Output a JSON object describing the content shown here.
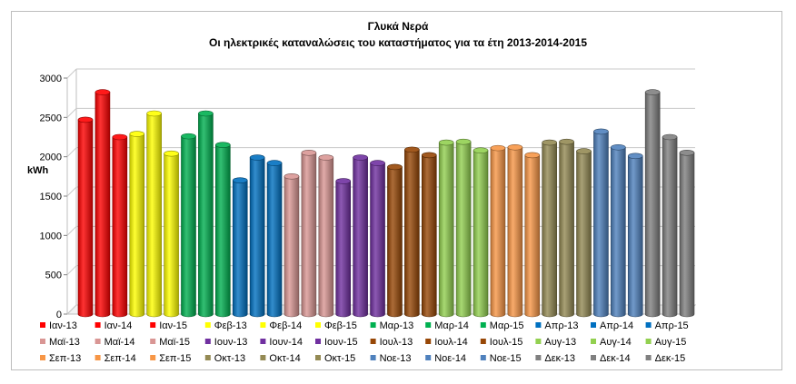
{
  "chart_data": {
    "type": "bar",
    "title": "Γλυκά Νερά",
    "subtitle": "Οι ηλεκτρικές καταναλώσεις του καταστήματος για τα έτη 2013-2014-2015",
    "ylabel": "kWh",
    "xlabel": "",
    "ylim": [
      0,
      3000
    ],
    "yticks": [
      0,
      500,
      1000,
      1500,
      2000,
      2500,
      3000
    ],
    "grid": true,
    "legend": "bottom",
    "series": [
      {
        "name": "Ιαν-13",
        "value": 2470,
        "color": "#ff0000"
      },
      {
        "name": "Ιαν-14",
        "value": 2820,
        "color": "#ff0000"
      },
      {
        "name": "Ιαν-15",
        "value": 2250,
        "color": "#ff0000"
      },
      {
        "name": "Φεβ-13",
        "value": 2290,
        "color": "#ffff00"
      },
      {
        "name": "Φεβ-14",
        "value": 2550,
        "color": "#ffff00"
      },
      {
        "name": "Φεβ-15",
        "value": 2040,
        "color": "#ffff00"
      },
      {
        "name": "Μαρ-13",
        "value": 2260,
        "color": "#00b050"
      },
      {
        "name": "Μαρ-14",
        "value": 2550,
        "color": "#00b050"
      },
      {
        "name": "Μαρ-15",
        "value": 2150,
        "color": "#00b050"
      },
      {
        "name": "Απρ-13",
        "value": 1700,
        "color": "#0070c0"
      },
      {
        "name": "Απρ-14",
        "value": 1990,
        "color": "#0070c0"
      },
      {
        "name": "Απρ-15",
        "value": 1920,
        "color": "#0070c0"
      },
      {
        "name": "Μαϊ-13",
        "value": 1750,
        "color": "#d99694"
      },
      {
        "name": "Μαϊ-14",
        "value": 2050,
        "color": "#d99694"
      },
      {
        "name": "Μαϊ-15",
        "value": 1990,
        "color": "#d99694"
      },
      {
        "name": "Ιουν-13",
        "value": 1690,
        "color": "#7030a0"
      },
      {
        "name": "Ιουν-14",
        "value": 1990,
        "color": "#7030a0"
      },
      {
        "name": "Ιουν-15",
        "value": 1920,
        "color": "#7030a0"
      },
      {
        "name": "Ιουλ-13",
        "value": 1870,
        "color": "#974706"
      },
      {
        "name": "Ιουλ-14",
        "value": 2090,
        "color": "#974706"
      },
      {
        "name": "Ιουλ-15",
        "value": 2020,
        "color": "#974706"
      },
      {
        "name": "Αυγ-13",
        "value": 2180,
        "color": "#92d050"
      },
      {
        "name": "Αυγ-14",
        "value": 2190,
        "color": "#92d050"
      },
      {
        "name": "Αυγ-15",
        "value": 2080,
        "color": "#92d050"
      },
      {
        "name": "Σεπ-13",
        "value": 2110,
        "color": "#f79646"
      },
      {
        "name": "Σεπ-14",
        "value": 2120,
        "color": "#f79646"
      },
      {
        "name": "Σεπ-15",
        "value": 2020,
        "color": "#f79646"
      },
      {
        "name": "Οκτ-13",
        "value": 2180,
        "color": "#948a54"
      },
      {
        "name": "Οκτ-14",
        "value": 2190,
        "color": "#948a54"
      },
      {
        "name": "Οκτ-15",
        "value": 2070,
        "color": "#948a54"
      },
      {
        "name": "Νοε-13",
        "value": 2320,
        "color": "#4f81bd"
      },
      {
        "name": "Νοε-14",
        "value": 2120,
        "color": "#4f81bd"
      },
      {
        "name": "Νοε-15",
        "value": 2010,
        "color": "#4f81bd"
      },
      {
        "name": "Δεκ-13",
        "value": 2820,
        "color": "#808080"
      },
      {
        "name": "Δεκ-14",
        "value": 2250,
        "color": "#808080"
      },
      {
        "name": "Δεκ-15",
        "value": 2050,
        "color": "#808080"
      }
    ]
  }
}
